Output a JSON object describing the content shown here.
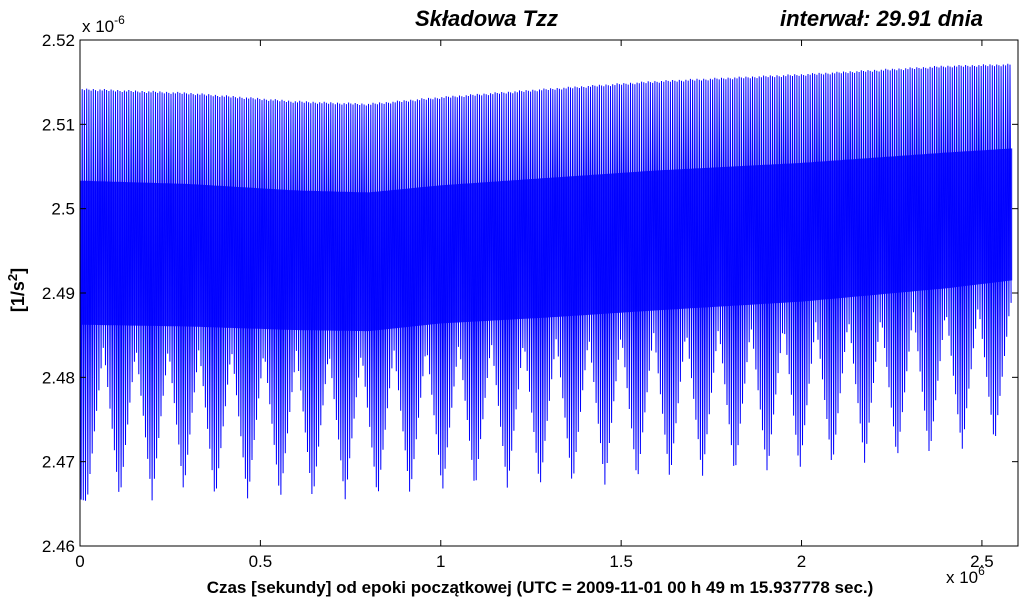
{
  "chart_data": {
    "type": "line",
    "title": "Składowa  Tzz",
    "subtitle": "interwał:  29.91 dnia",
    "xlabel": "Czas  [sekundy] od epoki początkowej  (UTC = 2009-11-01 00 h 49 m 15.937778 sec.)",
    "ylabel_base": "[1/s",
    "ylabel_sup": "2",
    "ylabel_close": "]",
    "x_multiplier_base": "x 10",
    "x_multiplier_exp": "6",
    "y_multiplier_base": "x 10",
    "y_multiplier_exp": "-6",
    "xlim": [
      0,
      2.6
    ],
    "ylim": [
      2.46,
      2.52
    ],
    "x_ticks": [
      0,
      0.5,
      1,
      1.5,
      2,
      2.5
    ],
    "x_tick_labels": [
      "0",
      "0.5",
      "1",
      "1.5",
      "2",
      "2.5"
    ],
    "y_ticks": [
      2.46,
      2.47,
      2.48,
      2.49,
      2.5,
      2.51,
      2.52
    ],
    "y_tick_labels": [
      "2.46",
      "2.47",
      "2.48",
      "2.49",
      "2.5",
      "2.51",
      "2.52"
    ],
    "grid": false,
    "series": [
      {
        "color": "#0000ff",
        "x_range": [
          0,
          2.584
        ],
        "envelope": {
          "x": [
            0,
            0.3,
            0.6,
            0.8,
            1.0,
            1.3,
            1.6,
            2.0,
            2.2,
            2.4,
            2.584
          ],
          "upper": [
            2.5143,
            2.5138,
            2.5128,
            2.5125,
            2.5133,
            2.5143,
            2.5152,
            2.516,
            2.5165,
            2.517,
            2.5172
          ],
          "lower": [
            2.4655,
            2.4655,
            2.4655,
            2.4655,
            2.4665,
            2.467,
            2.4678,
            2.469,
            2.47,
            2.471,
            2.4725
          ]
        },
        "beat_minima_x": [
          0.065,
          0.155,
          0.245,
          0.33,
          0.42,
          0.51,
          0.6,
          0.69,
          0.78,
          0.87,
          0.96,
          1.05,
          1.14,
          1.23,
          1.32,
          1.41,
          1.5,
          1.59,
          1.68,
          1.77,
          1.86,
          1.95,
          2.04,
          2.13,
          2.22,
          2.31,
          2.4,
          2.49,
          2.58
        ]
      }
    ]
  }
}
